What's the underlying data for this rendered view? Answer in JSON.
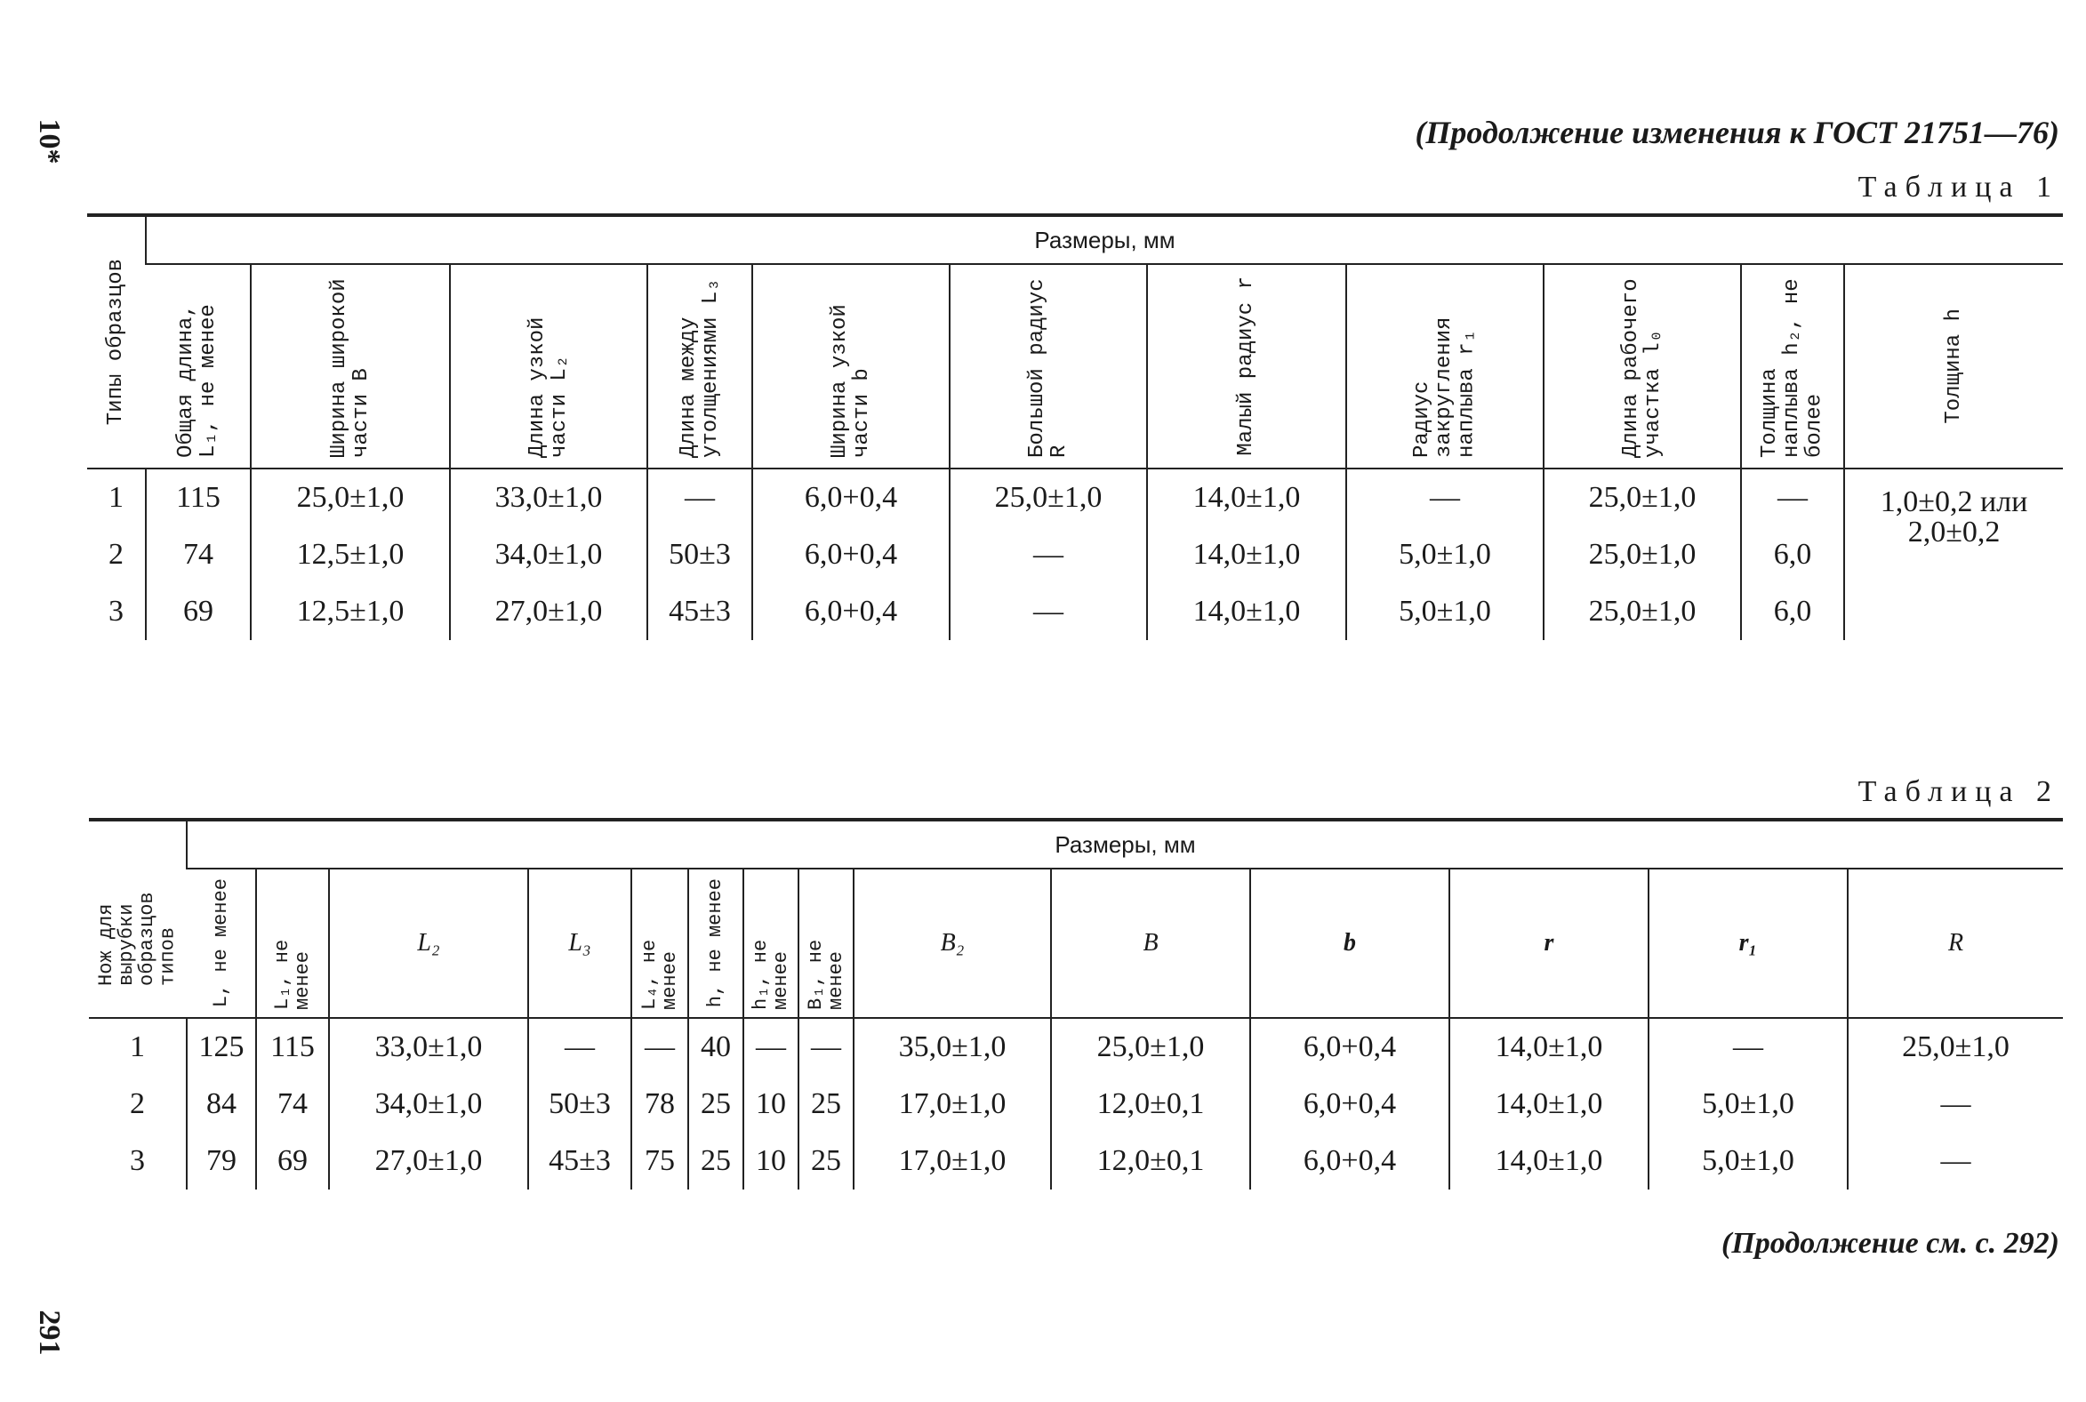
{
  "page": {
    "number": "10*",
    "footer_number": "291",
    "header": "(Продолжение изменения к ГОСТ 21751—76)",
    "continuation": "(Продолжение см. с. 292)"
  },
  "table1": {
    "caption": "Таблица 1",
    "row_header": "Типы образцов",
    "group_header": "Размеры, мм",
    "columns": [
      "Общая длина, L₁, не менее",
      "Ширина широкой части B",
      "Длина узкой части L₂",
      "Длина между утолщениями L₃",
      "Ширина узкой части b",
      "Большой радиус R",
      "Малый радиус r",
      "Радиус закругления наплыва r₁",
      "Длина рабочего участка l₀",
      "Толщина наплыва h₂, не более",
      "Толщина h"
    ],
    "rows": [
      {
        "type": "1",
        "cells": [
          "115",
          "25,0±1,0",
          "33,0±1,0",
          "—",
          "6,0+0,4",
          "25,0±1,0",
          "14,0±1,0",
          "—",
          "25,0±1,0",
          "—"
        ]
      },
      {
        "type": "2",
        "cells": [
          "74",
          "12,5±1,0",
          "34,0±1,0",
          "50±3",
          "6,0+0,4",
          "—",
          "14,0±1,0",
          "5,0±1,0",
          "25,0±1,0",
          "6,0"
        ]
      },
      {
        "type": "3",
        "cells": [
          "69",
          "12,5±1,0",
          "27,0±1,0",
          "45±3",
          "6,0+0,4",
          "—",
          "14,0±1,0",
          "5,0±1,0",
          "25,0±1,0",
          "6,0"
        ]
      }
    ],
    "thickness": "1,0±0,2 или 2,0±0,2"
  },
  "table2": {
    "caption": "Таблица 2",
    "row_header": "Нож для вырубки образцов типов",
    "group_header": "Размеры, мм",
    "columns": [
      "L, не менее",
      "L₁, не менее",
      "L₂",
      "L₃",
      "L₄, не менее",
      "h, не менее",
      "h₁, не менее",
      "B₁, не менее",
      "B₂",
      "B",
      "b",
      "r",
      "r₁",
      "R"
    ],
    "rows": [
      {
        "type": "1",
        "cells": [
          "125",
          "115",
          "33,0±1,0",
          "—",
          "—",
          "40",
          "—",
          "—",
          "35,0±1,0",
          "25,0±1,0",
          "6,0+0,4",
          "14,0±1,0",
          "—",
          "25,0±1,0"
        ]
      },
      {
        "type": "2",
        "cells": [
          "84",
          "74",
          "34,0±1,0",
          "50±3",
          "78",
          "25",
          "10",
          "25",
          "17,0±1,0",
          "12,0±0,1",
          "6,0+0,4",
          "14,0±1,0",
          "5,0±1,0",
          "—"
        ]
      },
      {
        "type": "3",
        "cells": [
          "79",
          "69",
          "27,0±1,0",
          "45±3",
          "75",
          "25",
          "10",
          "25",
          "17,0±1,0",
          "12,0±0,1",
          "6,0+0,4",
          "14,0±1,0",
          "5,0±1,0",
          "—"
        ]
      }
    ]
  }
}
